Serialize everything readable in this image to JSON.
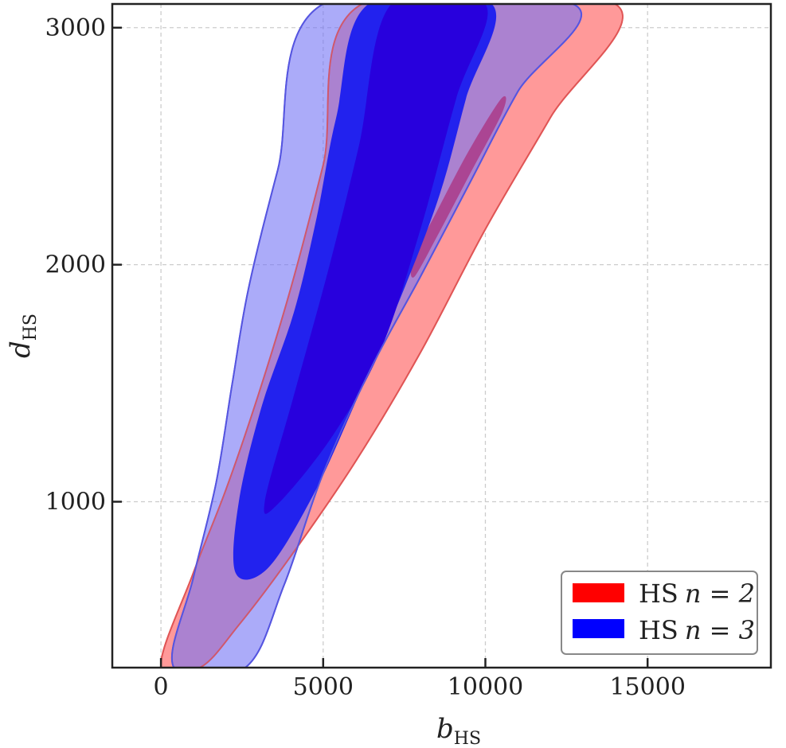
{
  "chart_data": {
    "type": "contour",
    "title": "",
    "xlabel": "b",
    "xlabel_sub": "HS",
    "ylabel": "d",
    "ylabel_sub": "HS",
    "xlim": [
      -1500,
      18800
    ],
    "ylim": [
      300,
      3100
    ],
    "xticks": [
      0,
      5000,
      10000,
      15000
    ],
    "xtick_labels": [
      "0",
      "5000",
      "10000",
      "15000"
    ],
    "yticks": [
      1000,
      2000,
      3000
    ],
    "ytick_labels": [
      "1000",
      "2000",
      "3000"
    ],
    "grid": true,
    "legend_position": "lower-right",
    "series": [
      {
        "name": "HS",
        "name_math": "n = 2",
        "color": "#ff0000",
        "outer_color": "#ff9999",
        "edge_color": "#e05555",
        "outer_contour": {
          "left": [
            [
              0,
              310
            ],
            [
              1000,
              700
            ],
            [
              2000,
              1050
            ],
            [
              3000,
              1450
            ],
            [
              4000,
              1900
            ],
            [
              5000,
              2420
            ],
            [
              6200,
              3100
            ]
          ],
          "right": [
            [
              14000,
              3100
            ],
            [
              12000,
              2620
            ],
            [
              10000,
              2150
            ],
            [
              8000,
              1630
            ],
            [
              6000,
              1170
            ],
            [
              4000,
              770
            ],
            [
              2400,
              480
            ],
            [
              1200,
              300
            ]
          ]
        },
        "inner_contour": {
          "upper": [
            [
              10500,
              2700
            ],
            [
              9500,
              2480
            ],
            [
              8500,
              2220
            ],
            [
              7800,
              2030
            ]
          ],
          "lower": [
            [
              7800,
              1950
            ],
            [
              8500,
              2120
            ],
            [
              9500,
              2380
            ],
            [
              10500,
              2640
            ]
          ]
        }
      },
      {
        "name": "HS",
        "name_math": "n = 3",
        "color": "#0000ff",
        "outer_color": "#a5a5f9",
        "edge_color": "#5555e0",
        "outer_contour": {
          "left": [
            [
              400,
              300
            ],
            [
              1000,
              680
            ],
            [
              1700,
              1080
            ],
            [
              2200,
              1500
            ],
            [
              2700,
              1900
            ],
            [
              3600,
              2400
            ],
            [
              5000,
              3100
            ]
          ],
          "right": [
            [
              12700,
              3100
            ],
            [
              11000,
              2730
            ],
            [
              9500,
              2340
            ],
            [
              8000,
              1950
            ],
            [
              6500,
              1570
            ],
            [
              5000,
              1120
            ],
            [
              3800,
              650
            ],
            [
              2600,
              300
            ]
          ]
        },
        "mid_contour": {
          "left": [
            [
              2300,
              700
            ],
            [
              2400,
              1000
            ],
            [
              3100,
              1400
            ],
            [
              4100,
              1800
            ],
            [
              4800,
              2200
            ],
            [
              5400,
              2620
            ],
            [
              6400,
              3100
            ]
          ],
          "right": [
            [
              10200,
              3100
            ],
            [
              9400,
              2700
            ],
            [
              8600,
              2300
            ],
            [
              7500,
              1900
            ],
            [
              6000,
              1420
            ],
            [
              4700,
              1030
            ],
            [
              3300,
              720
            ]
          ]
        },
        "inner_contour": {
          "left": [
            [
              3200,
              1000
            ],
            [
              4100,
              1450
            ],
            [
              5200,
              2000
            ],
            [
              6100,
              2500
            ],
            [
              7100,
              3100
            ]
          ],
          "right": [
            [
              10000,
              3100
            ],
            [
              9100,
              2700
            ],
            [
              8000,
              2150
            ],
            [
              6800,
              1650
            ],
            [
              5300,
              1280
            ],
            [
              3600,
              990
            ]
          ]
        }
      }
    ]
  }
}
